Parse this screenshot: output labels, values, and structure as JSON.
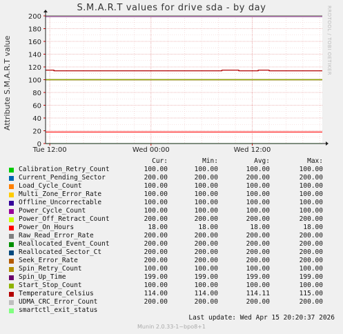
{
  "title": "S.M.A.R.T values for drive sda - by day",
  "watermark": "RRDTOOL / TOBI OETIKER",
  "legend_header": {
    "cur": "Cur:",
    "min": "Min:",
    "avg": "Avg:",
    "max": "Max:"
  },
  "last_update": "Last update:  Wed Apr 15 20:20:37 2026",
  "footer": "Munin 2.0.33-1~bpo8+1",
  "chart_data": {
    "type": "line",
    "title": "S.M.A.R.T values for drive sda - by day",
    "ylabel": "Attribute S.M.A.R.T value",
    "xlabel": "",
    "ylim": [
      0,
      200
    ],
    "yticks": [
      0,
      20,
      40,
      60,
      80,
      100,
      120,
      140,
      160,
      180,
      200
    ],
    "yticklabels": [
      "0",
      "20",
      "40",
      "60",
      "80",
      "100",
      "120",
      "140",
      "160",
      "180",
      "200"
    ],
    "x_ticks": [
      {
        "label": "Tue 12:00",
        "hours": 0
      },
      {
        "label": "Wed 00:00",
        "hours": 12
      },
      {
        "label": "Wed 12:00",
        "hours": 24
      }
    ],
    "x_range_hours": [
      -0.5,
      32.3
    ],
    "grid": true,
    "series": [
      {
        "name": "Calibration_Retry_Count",
        "color": "#00cc00",
        "cur": "100.00",
        "min": "100.00",
        "avg": "100.00",
        "max": "100.00",
        "values": [
          100
        ]
      },
      {
        "name": "Current_Pending_Sector",
        "color": "#0066b3",
        "cur": "200.00",
        "min": "200.00",
        "avg": "200.00",
        "max": "200.00",
        "values": [
          200
        ]
      },
      {
        "name": "Load_Cycle_Count",
        "color": "#ff8000",
        "cur": "100.00",
        "min": "100.00",
        "avg": "100.00",
        "max": "100.00",
        "values": [
          100
        ]
      },
      {
        "name": "Multi_Zone_Error_Rate",
        "color": "#ffcc00",
        "cur": "100.00",
        "min": "100.00",
        "avg": "100.00",
        "max": "100.00",
        "values": [
          100
        ]
      },
      {
        "name": "Offline_Uncorrectable",
        "color": "#330099",
        "cur": "100.00",
        "min": "100.00",
        "avg": "100.00",
        "max": "100.00",
        "values": [
          100
        ]
      },
      {
        "name": "Power_Cycle_Count",
        "color": "#990099",
        "cur": "100.00",
        "min": "100.00",
        "avg": "100.00",
        "max": "100.00",
        "values": [
          100
        ]
      },
      {
        "name": "Power_Off_Retract_Count",
        "color": "#ccff00",
        "cur": "200.00",
        "min": "200.00",
        "avg": "200.00",
        "max": "200.00",
        "values": [
          200
        ]
      },
      {
        "name": "Power_On_Hours",
        "color": "#ff0000",
        "cur": "18.00",
        "min": "18.00",
        "avg": "18.00",
        "max": "18.00",
        "values": [
          18
        ]
      },
      {
        "name": "Raw_Read_Error_Rate",
        "color": "#808080",
        "cur": "200.00",
        "min": "200.00",
        "avg": "200.00",
        "max": "200.00",
        "values": [
          200
        ]
      },
      {
        "name": "Reallocated_Event_Count",
        "color": "#008f00",
        "cur": "200.00",
        "min": "200.00",
        "avg": "200.00",
        "max": "200.00",
        "values": [
          200
        ]
      },
      {
        "name": "Reallocated_Sector_Ct",
        "color": "#00487d",
        "cur": "200.00",
        "min": "200.00",
        "avg": "200.00",
        "max": "200.00",
        "values": [
          200
        ]
      },
      {
        "name": "Seek_Error_Rate",
        "color": "#b35a00",
        "cur": "200.00",
        "min": "200.00",
        "avg": "200.00",
        "max": "200.00",
        "values": [
          200
        ]
      },
      {
        "name": "Spin_Retry_Count",
        "color": "#b38f00",
        "cur": "100.00",
        "min": "100.00",
        "avg": "100.00",
        "max": "100.00",
        "values": [
          100
        ]
      },
      {
        "name": "Spin_Up_Time",
        "color": "#6b006b",
        "cur": "199.00",
        "min": "199.00",
        "avg": "199.00",
        "max": "199.00",
        "values": [
          199
        ]
      },
      {
        "name": "Start_Stop_Count",
        "color": "#8fb300",
        "cur": "100.00",
        "min": "100.00",
        "avg": "100.00",
        "max": "100.00",
        "values": [
          100
        ]
      },
      {
        "name": "Temperature_Celsius",
        "color": "#b30000",
        "cur": "114.00",
        "min": "114.00",
        "avg": "114.11",
        "max": "115.00",
        "x_hours": [
          -0.5,
          0.5,
          20.0,
          20.4,
          22.0,
          22.4,
          24.3,
          24.7,
          26.0,
          32.3
        ],
        "values": [
          115,
          114,
          114,
          115,
          115,
          114,
          114,
          115,
          114,
          114
        ]
      },
      {
        "name": "UDMA_CRC_Error_Count",
        "color": "#bebebe",
        "cur": "200.00",
        "min": "200.00",
        "avg": "200.00",
        "max": "200.00",
        "values": [
          200
        ]
      },
      {
        "name": "smartctl_exit_status",
        "color": "#80ff80",
        "cur": "",
        "min": "",
        "avg": "",
        "max": "",
        "values": [
          0
        ]
      }
    ]
  }
}
